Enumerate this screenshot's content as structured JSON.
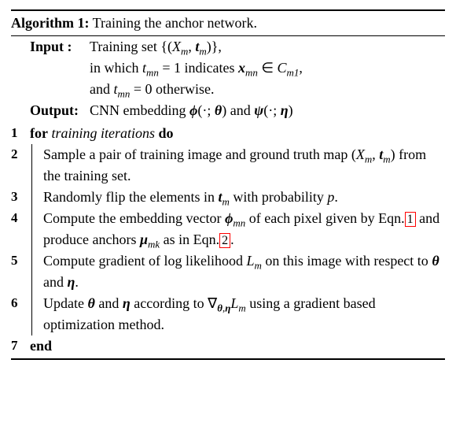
{
  "algorithm": {
    "number": "1",
    "title_label": "Algorithm 1:",
    "title": " Training the anchor network.",
    "input_label": "Input  :",
    "output_label": "Output:",
    "for_keyword": "for",
    "do_keyword": "do",
    "end_keyword": "end",
    "for_clause": "training iterations",
    "line_numbers": [
      "1",
      "2",
      "3",
      "4",
      "5",
      "6",
      "7"
    ],
    "input": {
      "line1_prefix": "Training set {(",
      "line1_mid1": "X",
      "line1_sub1": "m",
      "line1_comma": ", ",
      "line1_t": "t",
      "line1_sub2": "m",
      "line1_suffix": ")},",
      "line2_prefix": "in which ",
      "line2_t": "t",
      "line2_sub": "mn",
      "line2_eq": " = 1 indicates ",
      "line2_x": "x",
      "line2_xsub": "mn",
      "line2_in": " ∈ ",
      "line2_C": "C",
      "line2_csub": "m1",
      "line2_end": ",",
      "line3_prefix": "and ",
      "line3_t": "t",
      "line3_sub": "mn",
      "line3_end": " = 0 otherwise."
    },
    "output": {
      "prefix": "CNN embedding ",
      "phi": "ϕ",
      "lparen1": "(·; ",
      "theta": "θ",
      "rparen1": ")",
      "and": " and ",
      "psi": "ψ",
      "lparen2": "(·; ",
      "eta": "η",
      "rparen2": ")"
    },
    "steps": {
      "s2": {
        "text_a": "Sample a pair of training image and ground truth map (",
        "X": "X",
        "Xsub": "m",
        "comma": ", ",
        "t": "t",
        "tsub": "m",
        "text_b": ") from the training set."
      },
      "s3": {
        "text_a": "Randomly flip the elements in ",
        "t": "t",
        "tsub": "m",
        "text_b": " with probability ",
        "p": "p",
        "dot": "."
      },
      "s4": {
        "text_a": "Compute the embedding vector ",
        "phi": "ϕ",
        "phisub": "mn",
        "text_b": " of each pixel given by Eqn.",
        "ref1": "1",
        "text_c": " and produce anchors ",
        "mu": "μ",
        "musub": "mk",
        "text_d": " as in Eqn.",
        "ref2": "2",
        "text_e": "."
      },
      "s5": {
        "text_a": "Compute gradient of log likelihood ",
        "L": "L",
        "Lsub": "m",
        "text_b": " on this image with respect to ",
        "theta": "θ",
        "and": " and ",
        "eta": "η",
        "dot": "."
      },
      "s6": {
        "text_a": "Update ",
        "theta": "θ",
        "and": " and ",
        "eta": "η",
        "text_b": " according to ∇",
        "nabsub_theta": "θ",
        "nabsub_comma": ",",
        "nabsub_eta": "η",
        "L": "L",
        "Lsub": "m",
        "text_c": " using a gradient based optimization method."
      }
    }
  },
  "style": {
    "background_color": "#ffffff",
    "text_color": "#000000",
    "ref_border_color": "#ff0000",
    "font_family": "Times New Roman",
    "font_size_pt": 13
  }
}
